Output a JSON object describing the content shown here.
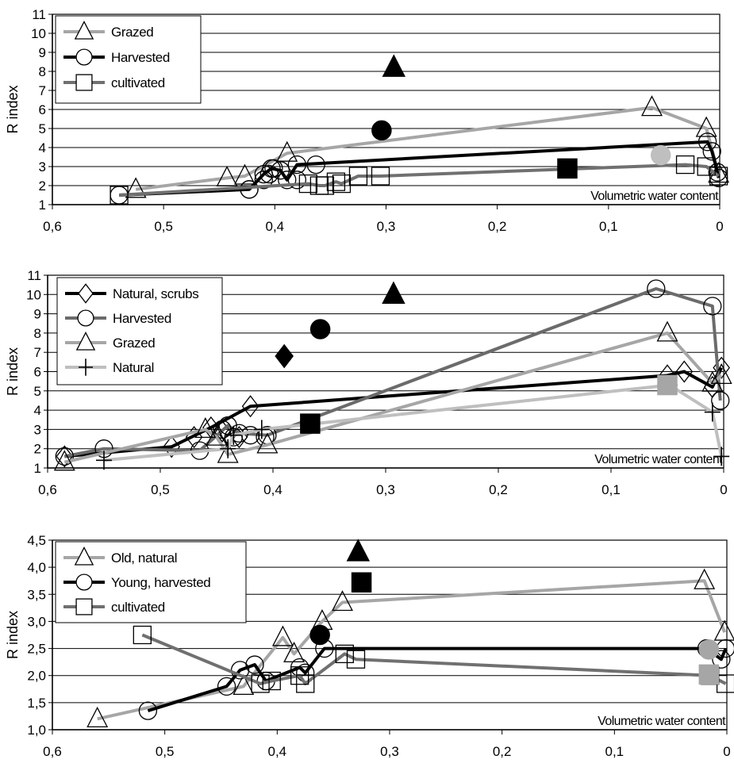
{
  "chart_data": [
    {
      "type": "line",
      "xlim": [
        0.6,
        0
      ],
      "ylim": [
        1,
        11
      ],
      "ylabel": "R index",
      "xlabel": "Volumetric water content",
      "xticks": [
        "0,6",
        "0,5",
        "0,4",
        "0,3",
        "0,2",
        "0,1",
        "0"
      ],
      "yticks": [
        "1",
        "2",
        "3",
        "4",
        "5",
        "6",
        "7",
        "8",
        "9",
        "10",
        "11"
      ],
      "grid": true,
      "legend_position": "top-left",
      "series": [
        {
          "name": "Grazed",
          "marker": "triangle",
          "color": "#a6a6a6",
          "x": [
            0.525,
            0.443,
            0.427,
            0.389,
            0.061,
            0.012,
            0.001
          ],
          "y": [
            1.8,
            2.4,
            2.5,
            3.7,
            6.1,
            5.0,
            2.6
          ]
        },
        {
          "name": "Harvested",
          "marker": "circle",
          "color": "#000000",
          "x": [
            0.54,
            0.423,
            0.41,
            0.403,
            0.395,
            0.389,
            0.38,
            0.011,
            0.007,
            0.002,
            0.001
          ],
          "y": [
            1.5,
            1.8,
            2.6,
            2.9,
            2.8,
            2.3,
            3.1,
            4.3,
            3.8,
            2.7,
            2.4
          ],
          "marker_only_x": [
            0.423,
            0.41,
            0.405,
            0.401,
            0.38,
            0.363
          ],
          "marker_only_y": [
            1.8,
            2.3,
            2.6,
            2.9,
            2.3,
            3.1
          ]
        },
        {
          "name": "cultivated",
          "marker": "square",
          "color": "#707070",
          "x": [
            0.54,
            0.37,
            0.36,
            0.355,
            0.345,
            0.34,
            0.325,
            0.305,
            0.031,
            0.012,
            0.001
          ],
          "y": [
            1.5,
            2.1,
            2.0,
            2.0,
            2.2,
            2.1,
            2.5,
            2.5,
            3.1,
            3.0,
            2.5
          ]
        }
      ],
      "highlight_points": [
        {
          "shape": "triangle",
          "color": "#000000",
          "x": 0.293,
          "y": 8.2
        },
        {
          "shape": "circle",
          "color": "#000000",
          "x": 0.304,
          "y": 4.9
        },
        {
          "shape": "square",
          "color": "#000000",
          "x": 0.137,
          "y": 2.9
        },
        {
          "shape": "circle",
          "color": "#bfbfbf",
          "x": 0.053,
          "y": 3.6
        }
      ]
    },
    {
      "type": "line",
      "xlim": [
        0.6,
        0
      ],
      "ylim": [
        1,
        11
      ],
      "ylabel": "R index",
      "xlabel": "Volumetric water content",
      "xticks": [
        "0,6",
        "0,5",
        "0,4",
        "0,3",
        "0,2",
        "0,1",
        "0"
      ],
      "yticks": [
        "1",
        "2",
        "3",
        "4",
        "5",
        "6",
        "7",
        "8",
        "9",
        "10",
        "11"
      ],
      "grid": true,
      "legend_position": "top-left",
      "series": [
        {
          "name": "Natural, scrubs",
          "marker": "diamond",
          "color": "#000000",
          "x": [
            0.585,
            0.49,
            0.455,
            0.42,
            0.05,
            0.035,
            0.01,
            0.002
          ],
          "y": [
            1.6,
            2.1,
            3.1,
            4.2,
            5.8,
            6.0,
            5.2,
            6.2
          ],
          "marker_only_x": [
            0.47,
            0.445,
            0.44,
            0.43
          ],
          "marker_only_y": [
            2.6,
            2.9,
            2.7,
            2.6
          ]
        },
        {
          "name": "Harvested",
          "marker": "circle",
          "color": "#6b6b6b",
          "x": [
            0.585,
            0.55,
            0.465,
            0.44,
            0.43,
            0.405,
            0.06,
            0.01,
            0.003
          ],
          "y": [
            1.6,
            2.0,
            1.9,
            3.2,
            2.8,
            2.7,
            10.3,
            9.4,
            4.5
          ],
          "marker_only_x": [
            0.445,
            0.435,
            0.42,
            0.407
          ],
          "marker_only_y": [
            3.0,
            2.6,
            2.7,
            2.6
          ]
        },
        {
          "name": "Grazed",
          "marker": "triangle",
          "color": "#a6a6a6",
          "x": [
            0.585,
            0.46,
            0.45,
            0.44,
            0.405,
            0.05,
            0.01,
            0.002
          ],
          "y": [
            1.3,
            3.0,
            2.6,
            1.7,
            2.2,
            8.0,
            5.4,
            5.8
          ]
        },
        {
          "name": "Natural",
          "marker": "plus",
          "color": "#bfbfbf",
          "x": [
            0.55,
            0.44,
            0.435,
            0.41,
            0.048,
            0.01,
            0.002
          ],
          "y": [
            1.4,
            2.0,
            2.7,
            3.0,
            5.3,
            3.9,
            1.6
          ]
        }
      ],
      "highlight_points": [
        {
          "shape": "triangle",
          "color": "#000000",
          "x": 0.293,
          "y": 10.0
        },
        {
          "shape": "circle",
          "color": "#000000",
          "x": 0.358,
          "y": 8.2
        },
        {
          "shape": "diamond",
          "color": "#000000",
          "x": 0.39,
          "y": 6.8
        },
        {
          "shape": "square",
          "color": "#000000",
          "x": 0.367,
          "y": 3.3
        },
        {
          "shape": "square",
          "color": "#a6a6a6",
          "x": 0.05,
          "y": 5.3
        }
      ]
    },
    {
      "type": "line",
      "xlim": [
        0.6,
        0
      ],
      "ylim": [
        1.0,
        4.5
      ],
      "ylabel": "R index",
      "xlabel": "Volumetric water content",
      "xticks": [
        "0,6",
        "0,5",
        "0,4",
        "0,3",
        "0,2",
        "0,1",
        "0"
      ],
      "yticks": [
        "1,0",
        "1,5",
        "2,0",
        "2,5",
        "3,0",
        "3,5",
        "4,0",
        "4,5"
      ],
      "grid": true,
      "legend_position": "top-left",
      "series": [
        {
          "name": "Old, natural",
          "marker": "triangle",
          "color": "#a6a6a6",
          "x": [
            0.56,
            0.43,
            0.395,
            0.385,
            0.36,
            0.342,
            0.02,
            0.002
          ],
          "y": [
            1.2,
            1.8,
            2.7,
            2.4,
            3.0,
            3.35,
            3.75,
            2.8
          ]
        },
        {
          "name": "Young, harvested",
          "marker": "circle",
          "color": "#000000",
          "x": [
            0.515,
            0.445,
            0.433,
            0.42,
            0.41,
            0.38,
            0.375,
            0.358,
            0.018,
            0.005,
            0.001
          ],
          "y": [
            1.35,
            1.8,
            2.1,
            2.2,
            1.9,
            2.15,
            2.05,
            2.5,
            2.5,
            2.3,
            2.5
          ]
        },
        {
          "name": "cultivated",
          "marker": "square",
          "color": "#707070",
          "x": [
            0.52,
            0.415,
            0.405,
            0.38,
            0.375,
            0.34,
            0.33,
            0.015,
            0.001
          ],
          "y": [
            2.75,
            1.85,
            1.9,
            2.0,
            1.85,
            2.4,
            2.3,
            2.0,
            1.85
          ]
        }
      ],
      "highlight_points": [
        {
          "shape": "triangle",
          "color": "#000000",
          "x": 0.328,
          "y": 4.28
        },
        {
          "shape": "square",
          "color": "#000000",
          "x": 0.325,
          "y": 3.72
        },
        {
          "shape": "circle",
          "color": "#000000",
          "x": 0.362,
          "y": 2.75
        },
        {
          "shape": "circle",
          "color": "#a6a6a6",
          "x": 0.016,
          "y": 2.48
        },
        {
          "shape": "square",
          "color": "#a6a6a6",
          "x": 0.016,
          "y": 2.02
        }
      ]
    }
  ]
}
